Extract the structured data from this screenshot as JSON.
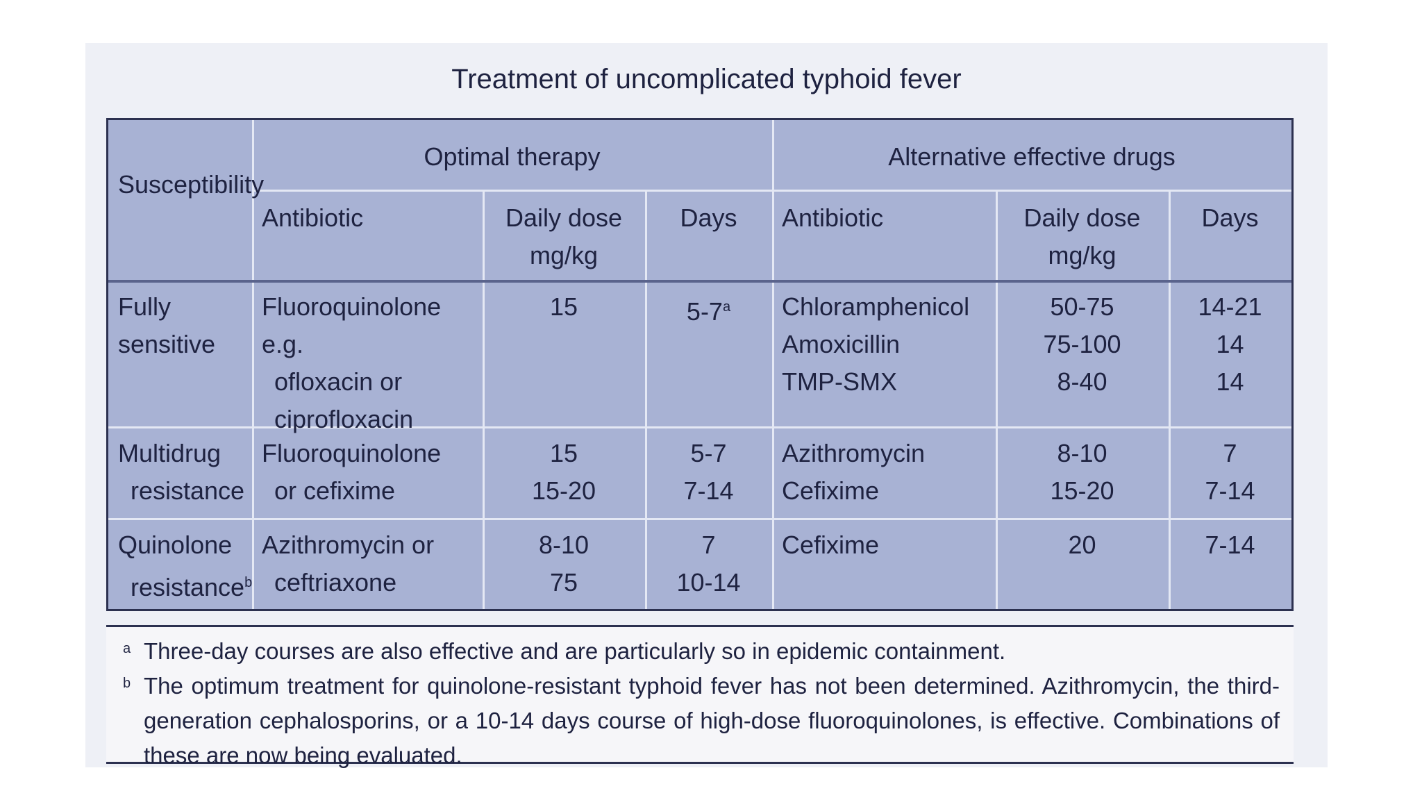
{
  "title": "Treatment of uncomplicated typhoid fever",
  "table": {
    "group_headers": [
      "Optimal therapy",
      "Alternative effective drugs"
    ],
    "headers": [
      [
        "Susceptibility"
      ],
      [
        "Antibiotic"
      ],
      [
        "Daily dose",
        "mg/kg"
      ],
      [
        "Days"
      ],
      [
        "Antibiotic"
      ],
      [
        "Daily dose",
        "mg/kg"
      ],
      [
        "Days"
      ]
    ],
    "rows": [
      [
        [
          {
            "text": "Fully sensitive"
          }
        ],
        [
          {
            "text": "Fluoroquinolone e.g."
          },
          {
            "text": "ofloxacin or"
          },
          {
            "text": "ciprofloxacin"
          }
        ],
        [
          {
            "text": "15"
          }
        ],
        [
          {
            "text": "5-7",
            "sup": "a"
          }
        ],
        [
          {
            "text": "Chloramphenicol"
          },
          {
            "text": "Amoxicillin"
          },
          {
            "text": "TMP-SMX"
          }
        ],
        [
          {
            "text": "50-75"
          },
          {
            "text": "75-100"
          },
          {
            "text": "8-40"
          }
        ],
        [
          {
            "text": "14-21"
          },
          {
            "text": "14"
          },
          {
            "text": "14"
          }
        ]
      ],
      [
        [
          {
            "text": "Multidrug"
          },
          {
            "text": "resistance"
          }
        ],
        [
          {
            "text": "Fluoroquinolone"
          },
          {
            "text": "or cefixime"
          }
        ],
        [
          {
            "text": "15"
          },
          {
            "text": "15-20"
          }
        ],
        [
          {
            "text": "5-7"
          },
          {
            "text": "7-14"
          }
        ],
        [
          {
            "text": "Azithromycin"
          },
          {
            "text": "Cefixime"
          }
        ],
        [
          {
            "text": "8-10"
          },
          {
            "text": "15-20"
          }
        ],
        [
          {
            "text": "7"
          },
          {
            "text": "7-14"
          }
        ]
      ],
      [
        [
          {
            "text": "Quinolone"
          },
          {
            "text": "resistance",
            "sup": "b"
          }
        ],
        [
          {
            "text": "Azithromycin or"
          },
          {
            "text": "ceftriaxone"
          }
        ],
        [
          {
            "text": "8-10"
          },
          {
            "text": "75"
          }
        ],
        [
          {
            "text": "7"
          },
          {
            "text": "10-14"
          }
        ],
        [
          {
            "text": "Cefixime"
          }
        ],
        [
          {
            "text": "20"
          }
        ],
        [
          {
            "text": "7-14"
          }
        ]
      ]
    ]
  },
  "footnotes": [
    {
      "mark": "a",
      "text": "Three-day courses are also effective and are particularly so in epidemic containment."
    },
    {
      "mark": "b",
      "text": "The optimum treatment for quinolone-resistant typhoid fever has not been determined. Azithromycin, the third-generation cephalosporins, or a 10-14 days course of high-dose fluoroquinolones, is effective. Combinations of these are now being evaluated."
    }
  ]
}
